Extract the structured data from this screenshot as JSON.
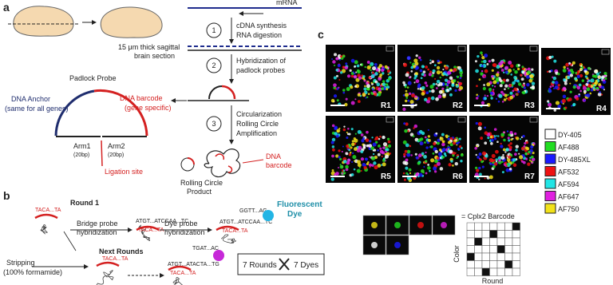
{
  "panel_a": {
    "label": "a",
    "brain_caption": [
      "15 μm thick sagittal",
      "brain section"
    ],
    "mrna": "mRNA",
    "steps": [
      {
        "number": "1",
        "lines": [
          "cDNA synthesis",
          "RNA digestion"
        ]
      },
      {
        "number": "2",
        "lines": [
          "Hybridization of",
          "padlock probes"
        ]
      },
      {
        "number": "3",
        "lines": [
          "Circularization",
          "Rolling Circle",
          "Amplification"
        ]
      }
    ],
    "padlock_title": "Padlock Probe",
    "anchor": [
      "DNA Anchor",
      "(same for all genes)"
    ],
    "barcode": [
      "DNA barcode",
      "(gene specific)"
    ],
    "arm1": [
      "Arm1",
      "(20bp)"
    ],
    "arm2": [
      "Arm2",
      "(20bp)"
    ],
    "ligation": "Ligation site",
    "rcp": [
      "Rolling Circle",
      "Product"
    ],
    "rcp_barcode": [
      "DNA",
      "barcode"
    ]
  },
  "panel_b": {
    "label": "b",
    "round1": "Round 1",
    "padlock_seq": "TACA...TA",
    "bridge_step": [
      "Bridge probe",
      "hybridization"
    ],
    "bridge_seq": "ATGT...ATCCAA...TC",
    "dye_step": [
      "Dye probe",
      "hybridization"
    ],
    "dye_seq": "GGTT...AG",
    "fluor": [
      "Fluorescent",
      "Dye"
    ],
    "next_rounds": "Next Rounds",
    "next_dye_seq": "TGAT...AC",
    "next_bridge_seq": "ATGT...ATACTA...TG",
    "stripping": [
      "Stripping",
      "(100% formamide)"
    ],
    "rounds_box": [
      "7 Rounds",
      "7 Dyes"
    ]
  },
  "panel_c": {
    "label": "c",
    "rounds": [
      "R1",
      "R2",
      "R3",
      "R4",
      "R5",
      "R6",
      "R7"
    ],
    "dyes": [
      {
        "name": "DY-405",
        "color": "#ffffff"
      },
      {
        "name": "AF488",
        "color": "#22dd22"
      },
      {
        "name": "DY-485XL",
        "color": "#1a1aff"
      },
      {
        "name": "AF532",
        "color": "#ee1111"
      },
      {
        "name": "AF594",
        "color": "#22e5e5"
      },
      {
        "name": "AF647",
        "color": "#e020e0"
      },
      {
        "name": "AF750",
        "color": "#f2e21a"
      }
    ],
    "barcode_label": "= Cplx2 Barcode",
    "color_axis": "Color",
    "round_axis": "Round"
  }
}
